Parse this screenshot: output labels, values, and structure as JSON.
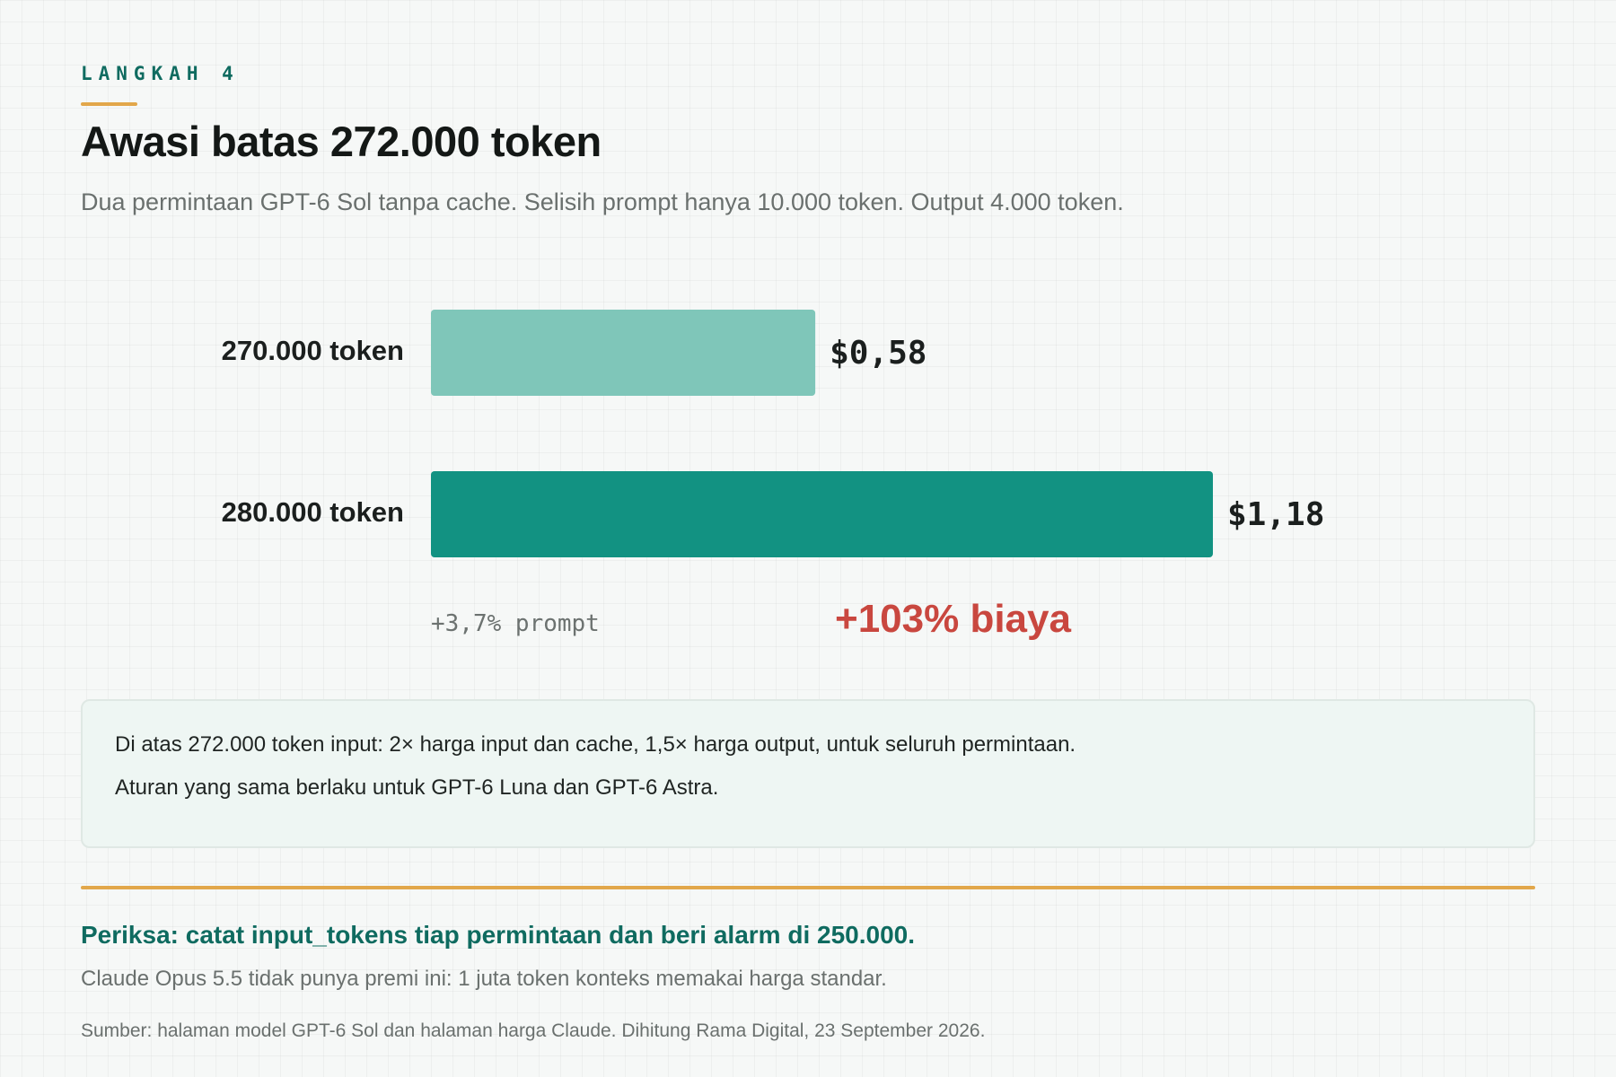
{
  "header": {
    "eyebrow": "LANGKAH 4",
    "title": "Awasi batas 272.000 token",
    "subtitle": "Dua permintaan GPT-6 Sol tanpa cache. Selisih prompt hanya 10.000 token. Output 4.000 token."
  },
  "chart_data": {
    "type": "bar",
    "orientation": "horizontal",
    "categories": [
      "270.000 token",
      "280.000 token"
    ],
    "values": [
      0.58,
      1.18
    ],
    "value_labels": [
      "$0,58",
      "$1,18"
    ],
    "colors": [
      "#7fc6b9",
      "#129282"
    ],
    "title": "",
    "xlabel": "",
    "ylabel": "",
    "grid": false,
    "legend": "none"
  },
  "annotations": {
    "prompt_change": "+3,7% prompt",
    "cost_change": "+103% biaya"
  },
  "info_box": {
    "line1": "Di atas 272.000 token input: 2× harga input dan cache, 1,5× harga output, untuk seluruh permintaan.",
    "line2": "Aturan yang sama berlaku untuk GPT-6 Luna dan GPT-6 Astra."
  },
  "footer": {
    "check": "Periksa: catat input_tokens tiap permintaan dan beri alarm di 250.000.",
    "note": "Claude Opus 5.5 tidak punya premi ini: 1 juta token konteks memakai harga standar.",
    "source": "Sumber: halaman model GPT-6 Sol dan halaman harga Claude. Dihitung Rama Digital, 23 September 2026."
  },
  "colors": {
    "accent": "#0f6b60",
    "rule": "#e2a74a",
    "highlight": "#c9473f"
  }
}
